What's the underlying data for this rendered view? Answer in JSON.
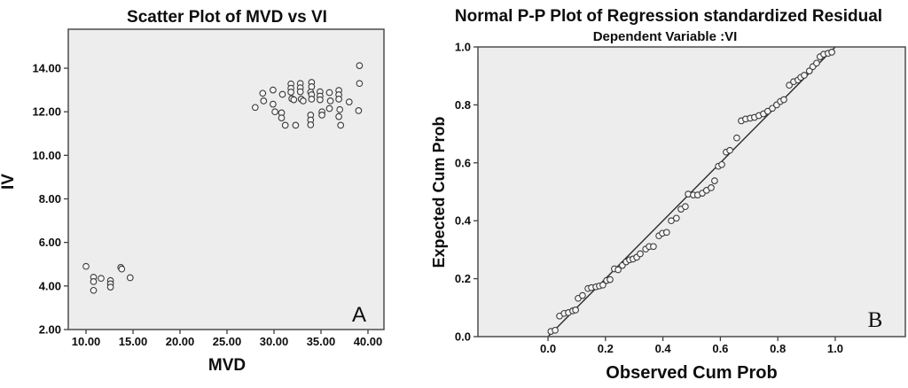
{
  "colors": {
    "plot_background": "#ededed",
    "frame": "#4d4d4d",
    "point_stroke": "#3a3a3a",
    "reference_line": "#2b2b2b",
    "text": "#0d0d0d",
    "page_background": "#ffffff"
  },
  "panel_a": {
    "title": "Scatter Plot of MVD vs VI",
    "xlabel": "MVD",
    "ylabel": "IV",
    "corner_label": "A",
    "x_ticks": [
      "10.00",
      "15.00",
      "20.00",
      "25.00",
      "30.00",
      "35.00",
      "40.00"
    ],
    "y_ticks": [
      "2.00",
      "4.00",
      "6.00",
      "8.00",
      "10.00",
      "12.00",
      "14.00"
    ]
  },
  "panel_b": {
    "title": "Normal P-P Plot of Regression standardized Residual",
    "subtitle": "Dependent Variable :VI",
    "xlabel": "Observed Cum Prob",
    "ylabel": "Expected Cum Prob",
    "corner_label": "B",
    "x_ticks": [
      "0.0",
      "0.2",
      "0.4",
      "0.6",
      "0.8",
      "1.0"
    ],
    "y_ticks": [
      "0.0",
      "0.2",
      "0.4",
      "0.6",
      "0.8",
      "1.0"
    ]
  },
  "chart_data": [
    {
      "type": "scatter",
      "title": "Scatter Plot of MVD vs VI",
      "xlabel": "MVD",
      "ylabel": "IV",
      "x_tick_range": [
        10,
        40
      ],
      "y_tick_range": [
        2,
        14
      ],
      "xlim": [
        8.11,
        41.7
      ],
      "ylim": [
        2.0,
        15.79
      ],
      "grid": false,
      "legend": "none",
      "points": [
        [
          10.0,
          4.9
        ],
        [
          10.8,
          4.4
        ],
        [
          10.8,
          4.2
        ],
        [
          10.8,
          3.8
        ],
        [
          11.6,
          4.35
        ],
        [
          12.6,
          4.25
        ],
        [
          12.6,
          4.1
        ],
        [
          12.6,
          3.95
        ],
        [
          13.7,
          4.85
        ],
        [
          13.8,
          4.78
        ],
        [
          14.7,
          4.38
        ],
        [
          28.0,
          12.2
        ],
        [
          28.8,
          12.85
        ],
        [
          28.9,
          12.5
        ],
        [
          29.9,
          13.0
        ],
        [
          29.9,
          12.35
        ],
        [
          30.1,
          12.0
        ],
        [
          30.9,
          12.8
        ],
        [
          30.8,
          11.95
        ],
        [
          30.8,
          11.72
        ],
        [
          31.2,
          11.38
        ],
        [
          31.8,
          13.28
        ],
        [
          31.8,
          13.08
        ],
        [
          31.8,
          12.9
        ],
        [
          31.9,
          12.6
        ],
        [
          32.1,
          12.55
        ],
        [
          32.3,
          11.38
        ],
        [
          32.8,
          13.3
        ],
        [
          32.8,
          13.1
        ],
        [
          32.8,
          12.92
        ],
        [
          32.9,
          12.58
        ],
        [
          33.1,
          12.5
        ],
        [
          34.0,
          13.35
        ],
        [
          34.0,
          13.15
        ],
        [
          33.9,
          12.9
        ],
        [
          34.0,
          12.78
        ],
        [
          34.0,
          12.58
        ],
        [
          33.9,
          11.85
        ],
        [
          33.9,
          11.62
        ],
        [
          33.9,
          11.4
        ],
        [
          34.9,
          12.92
        ],
        [
          34.9,
          12.72
        ],
        [
          34.9,
          12.55
        ],
        [
          35.1,
          12.0
        ],
        [
          35.1,
          11.85
        ],
        [
          35.9,
          12.88
        ],
        [
          36.0,
          12.5
        ],
        [
          35.9,
          12.15
        ],
        [
          36.9,
          12.98
        ],
        [
          36.9,
          12.78
        ],
        [
          36.9,
          12.58
        ],
        [
          37.0,
          12.1
        ],
        [
          36.9,
          11.78
        ],
        [
          37.1,
          11.38
        ],
        [
          38.0,
          12.45
        ],
        [
          39.1,
          14.12
        ],
        [
          39.1,
          13.3
        ],
        [
          39.0,
          12.05
        ]
      ]
    },
    {
      "type": "scatter",
      "title": "Normal P-P Plot of Regression standardized Residual",
      "subtitle": "Dependent Variable :VI",
      "xlabel": "Observed Cum Prob",
      "ylabel": "Expected Cum Prob",
      "x_tick_range": [
        0.0,
        1.0
      ],
      "y_tick_range": [
        0.0,
        1.0
      ],
      "xlim": [
        -0.244,
        1.244
      ],
      "ylim": [
        0.0,
        1.0
      ],
      "grid": false,
      "legend": "none",
      "ref_line": {
        "x1": 0.0,
        "y1": 0.0,
        "x2": 1.0,
        "y2": 1.0
      },
      "points": [
        [
          0.01,
          0.018
        ],
        [
          0.025,
          0.022
        ],
        [
          0.04,
          0.071
        ],
        [
          0.056,
          0.08
        ],
        [
          0.071,
          0.083
        ],
        [
          0.086,
          0.089
        ],
        [
          0.096,
          0.092
        ],
        [
          0.105,
          0.132
        ],
        [
          0.12,
          0.142
        ],
        [
          0.139,
          0.166
        ],
        [
          0.151,
          0.169
        ],
        [
          0.167,
          0.172
        ],
        [
          0.179,
          0.175
        ],
        [
          0.191,
          0.178
        ],
        [
          0.204,
          0.194
        ],
        [
          0.216,
          0.197
        ],
        [
          0.231,
          0.234
        ],
        [
          0.244,
          0.231
        ],
        [
          0.259,
          0.246
        ],
        [
          0.272,
          0.258
        ],
        [
          0.284,
          0.265
        ],
        [
          0.296,
          0.268
        ],
        [
          0.309,
          0.274
        ],
        [
          0.321,
          0.286
        ],
        [
          0.34,
          0.302
        ],
        [
          0.352,
          0.311
        ],
        [
          0.367,
          0.311
        ],
        [
          0.386,
          0.348
        ],
        [
          0.398,
          0.357
        ],
        [
          0.413,
          0.36
        ],
        [
          0.429,
          0.4
        ],
        [
          0.447,
          0.409
        ],
        [
          0.463,
          0.44
        ],
        [
          0.478,
          0.449
        ],
        [
          0.488,
          0.492
        ],
        [
          0.506,
          0.489
        ],
        [
          0.521,
          0.489
        ],
        [
          0.537,
          0.495
        ],
        [
          0.552,
          0.505
        ],
        [
          0.568,
          0.514
        ],
        [
          0.58,
          0.538
        ],
        [
          0.593,
          0.588
        ],
        [
          0.605,
          0.594
        ],
        [
          0.62,
          0.637
        ],
        [
          0.633,
          0.643
        ],
        [
          0.657,
          0.686
        ],
        [
          0.673,
          0.745
        ],
        [
          0.688,
          0.751
        ],
        [
          0.704,
          0.754
        ],
        [
          0.719,
          0.757
        ],
        [
          0.734,
          0.763
        ],
        [
          0.75,
          0.769
        ],
        [
          0.765,
          0.778
        ],
        [
          0.781,
          0.788
        ],
        [
          0.796,
          0.8
        ],
        [
          0.809,
          0.812
        ],
        [
          0.821,
          0.818
        ],
        [
          0.84,
          0.868
        ],
        [
          0.855,
          0.88
        ],
        [
          0.87,
          0.886
        ],
        [
          0.88,
          0.895
        ],
        [
          0.892,
          0.902
        ],
        [
          0.91,
          0.917
        ],
        [
          0.922,
          0.932
        ],
        [
          0.935,
          0.944
        ],
        [
          0.947,
          0.966
        ],
        [
          0.96,
          0.975
        ],
        [
          0.975,
          0.978
        ],
        [
          0.988,
          0.982
        ]
      ]
    }
  ]
}
